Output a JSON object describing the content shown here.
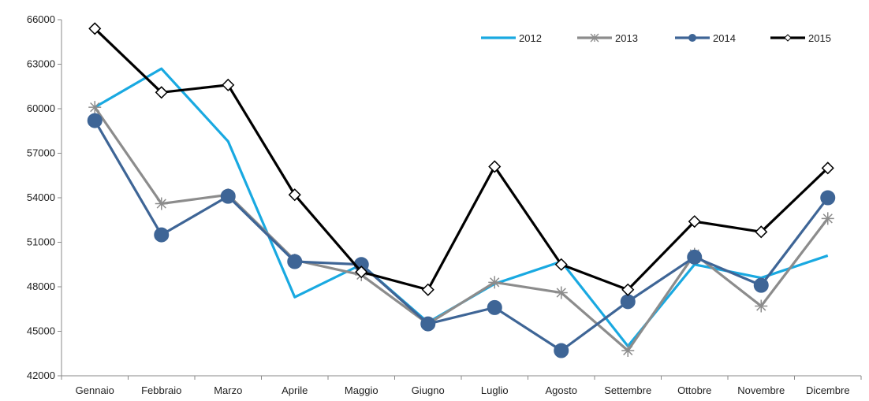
{
  "chart_data": {
    "type": "line",
    "categories": [
      "Gennaio",
      "Febbraio",
      "Marzo",
      "Aprile",
      "Maggio",
      "Giugno",
      "Luglio",
      "Agosto",
      "Settembre",
      "Ottobre",
      "Novembre",
      "Dicembre"
    ],
    "ylim": [
      42000,
      66000
    ],
    "yticks": [
      "42000",
      "45000",
      "48000",
      "51000",
      "54000",
      "57000",
      "60000",
      "63000",
      "66000"
    ],
    "grid": false,
    "legend_position": "top-right",
    "series": [
      {
        "name": "2012",
        "color": "#19A9E1",
        "marker": "none",
        "values": [
          60100,
          62700,
          57800,
          47300,
          49500,
          45600,
          48200,
          49700,
          44000,
          49500,
          48600,
          50100
        ]
      },
      {
        "name": "2013",
        "color": "#8C8C8C",
        "marker": "star",
        "values": [
          60100,
          53600,
          54200,
          49800,
          48800,
          45500,
          48300,
          47600,
          43700,
          50200,
          46700,
          52600
        ]
      },
      {
        "name": "2014",
        "color": "#3E6596",
        "marker": "circle",
        "values": [
          59200,
          51500,
          54100,
          49700,
          49500,
          45500,
          46600,
          43700,
          47000,
          50000,
          48100,
          54000
        ]
      },
      {
        "name": "2015",
        "color": "#000000",
        "marker": "diamond",
        "values": [
          65400,
          61100,
          61600,
          54200,
          49000,
          47800,
          56100,
          49500,
          47800,
          52400,
          51700,
          56000
        ]
      }
    ]
  }
}
